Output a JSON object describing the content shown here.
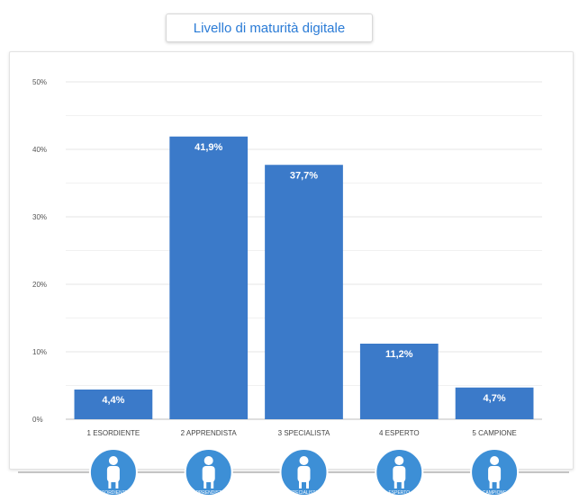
{
  "chart_data": {
    "type": "bar",
    "title": "Livello di maturità digitale",
    "categories": [
      "1 ESORDIENTE",
      "2 APPRENDISTA",
      "3 SPECIALISTA",
      "4 ESPERTO",
      "5 CAMPIONE"
    ],
    "values": [
      4.4,
      41.9,
      37.7,
      11.2,
      4.7
    ],
    "value_labels": [
      "4,4%",
      "41,9%",
      "37,7%",
      "11,2%",
      "4,7%"
    ],
    "yticks": [
      "0%",
      "10%",
      "20%",
      "30%",
      "40%",
      "50%"
    ],
    "ylim": [
      0,
      50
    ],
    "xlabel": "",
    "ylabel": "",
    "grid": true,
    "bar_color": "#3b7ac9",
    "badge_labels": [
      "ESORDIENTE",
      "APPRENDISTA",
      "SPECIALISTA",
      "ESPERTO",
      "CAMPIONE"
    ],
    "badge_icons": [
      "beginner-figure-icon",
      "apprentice-desk-icon",
      "specialist-walking-icon",
      "expert-raised-hand-icon",
      "champion-cheering-icon"
    ]
  },
  "colors": {
    "title_text": "#2a7bd6",
    "bar": "#3b7ac9",
    "badge": "#3d8fd6"
  }
}
